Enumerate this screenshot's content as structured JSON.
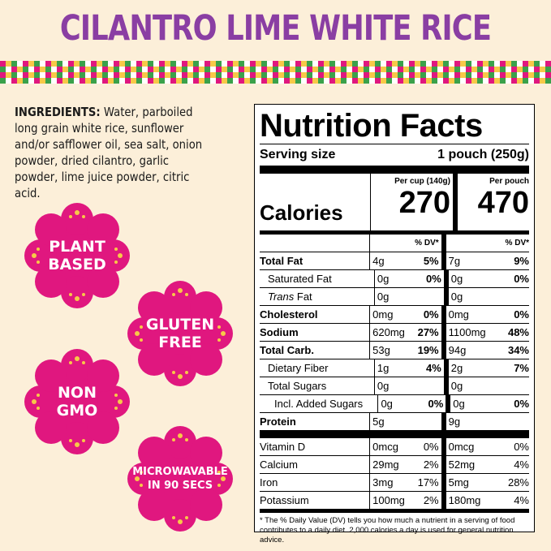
{
  "title": "CILANTRO LIME WHITE RICE",
  "ingredients": {
    "label": "INGREDIENTS:",
    "text": " Water, parboiled long grain white rice, sunflower and/or safflower oil, sea salt, onion powder, dried cilantro, garlic powder, lime juice powder, citric acid."
  },
  "badges": [
    "PLANT\nBASED",
    "GLUTEN\nFREE",
    "NON\nGMO",
    "MICROWAVABLE\nIN 90 SECS"
  ],
  "colors": {
    "title": "#8a3ea3",
    "badge": "#e0177f",
    "background": "#fcefd9"
  },
  "nutrition": {
    "title": "Nutrition Facts",
    "serving_label": "Serving size",
    "serving_value": "1 pouch (250g)",
    "col1_header": "Per cup (140g)",
    "col2_header": "Per pouch",
    "calories_label": "Calories",
    "calories_1": "270",
    "calories_2": "470",
    "dv_label": "% DV*",
    "rows": [
      {
        "name": "Total Fat",
        "a": "4g",
        "ad": "5%",
        "b": "7g",
        "bd": "9%"
      },
      {
        "name": "Saturated Fat",
        "a": "0g",
        "ad": "0%",
        "b": "0g",
        "bd": "0%"
      },
      {
        "name": "Fat",
        "prefix": "Trans",
        "a": "0g",
        "ad": "",
        "b": "0g",
        "bd": ""
      },
      {
        "name": "Cholesterol",
        "a": "0mg",
        "ad": "0%",
        "b": "0mg",
        "bd": "0%"
      },
      {
        "name": "Sodium",
        "a": "620mg",
        "ad": "27%",
        "b": "1100mg",
        "bd": "48%"
      },
      {
        "name": "Total Carb.",
        "a": "53g",
        "ad": "19%",
        "b": "94g",
        "bd": "34%"
      },
      {
        "name": "Dietary Fiber",
        "a": "1g",
        "ad": "4%",
        "b": "2g",
        "bd": "7%"
      },
      {
        "name": "Total Sugars",
        "a": "0g",
        "ad": "",
        "b": "0g",
        "bd": ""
      },
      {
        "name": "Incl. Added Sugars",
        "a": "0g",
        "ad": "0%",
        "b": "0g",
        "bd": "0%"
      },
      {
        "name": "Protein",
        "a": "5g",
        "ad": "",
        "b": "9g",
        "bd": ""
      }
    ],
    "vitamins": [
      {
        "name": "Vitamin D",
        "a": "0mcg",
        "ad": "0%",
        "b": "0mcg",
        "bd": "0%"
      },
      {
        "name": "Calcium",
        "a": "29mg",
        "ad": "2%",
        "b": "52mg",
        "bd": "4%"
      },
      {
        "name": "Iron",
        "a": "3mg",
        "ad": "17%",
        "b": "5mg",
        "bd": "28%"
      },
      {
        "name": "Potassium",
        "a": "100mg",
        "ad": "2%",
        "b": "180mg",
        "bd": "4%"
      }
    ],
    "footnote": "* The % Daily Value (DV) tells you how much a nutrient in a serving of food contributes to a daily diet. 2,000 calories a day is used for general nutrition advice."
  }
}
